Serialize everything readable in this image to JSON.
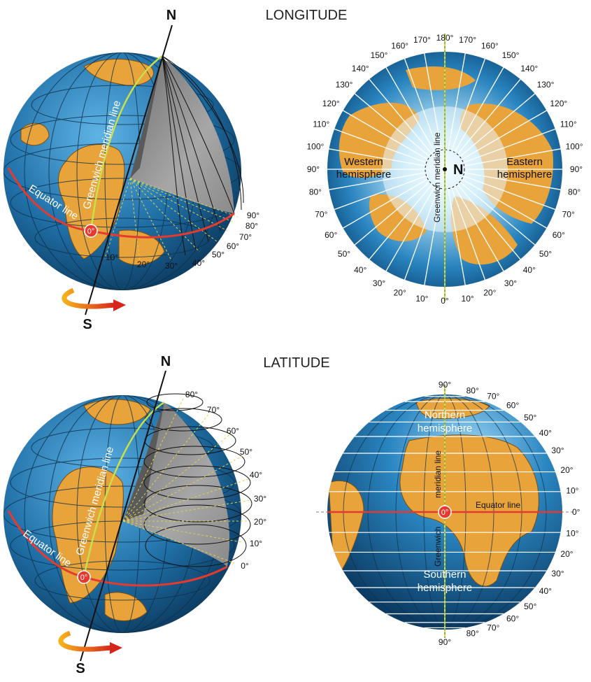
{
  "titles": {
    "longitude": "LONGITUDE",
    "latitude": "LATITUDE"
  },
  "poles": {
    "north": "N",
    "south": "S"
  },
  "labels": {
    "greenwich": "Greenwich meridian line",
    "greenwich_word": "Greenwich",
    "meridian_line": "meridian line",
    "equator": "Equator line",
    "zero": "0°",
    "western": [
      "Western",
      "hemisphere"
    ],
    "eastern": [
      "Eastern",
      "hemisphere"
    ],
    "northern": [
      "Northern",
      "hemisphere"
    ],
    "southern": [
      "Southern",
      "hemisphere"
    ]
  },
  "longitude_globe_degrees": [
    "10°",
    "20°",
    "30°",
    "40°",
    "50°",
    "60°",
    "70°",
    "80°",
    "90°"
  ],
  "polar_view_degrees": [
    "0°",
    "10°",
    "20°",
    "30°",
    "40°",
    "50°",
    "60°",
    "70°",
    "80°",
    "90°",
    "100°",
    "110°",
    "120°",
    "130°",
    "140°",
    "150°",
    "160°",
    "170°",
    "180°"
  ],
  "latitude_globe_degrees": [
    "0°",
    "10°",
    "20°",
    "30°",
    "40°",
    "50°",
    "60°",
    "70°",
    "80°"
  ],
  "equator_view_degrees": [
    "0°",
    "10°",
    "20°",
    "30°",
    "40°",
    "50°",
    "60°",
    "70°",
    "80°",
    "90°"
  ],
  "colors": {
    "ocean": "#1f6fa6",
    "land": "#e8a33a",
    "grid": "#0e2f4a",
    "equator": "#e53a2f",
    "meridian": "#c8e04a",
    "section": "#8a8a8a"
  }
}
